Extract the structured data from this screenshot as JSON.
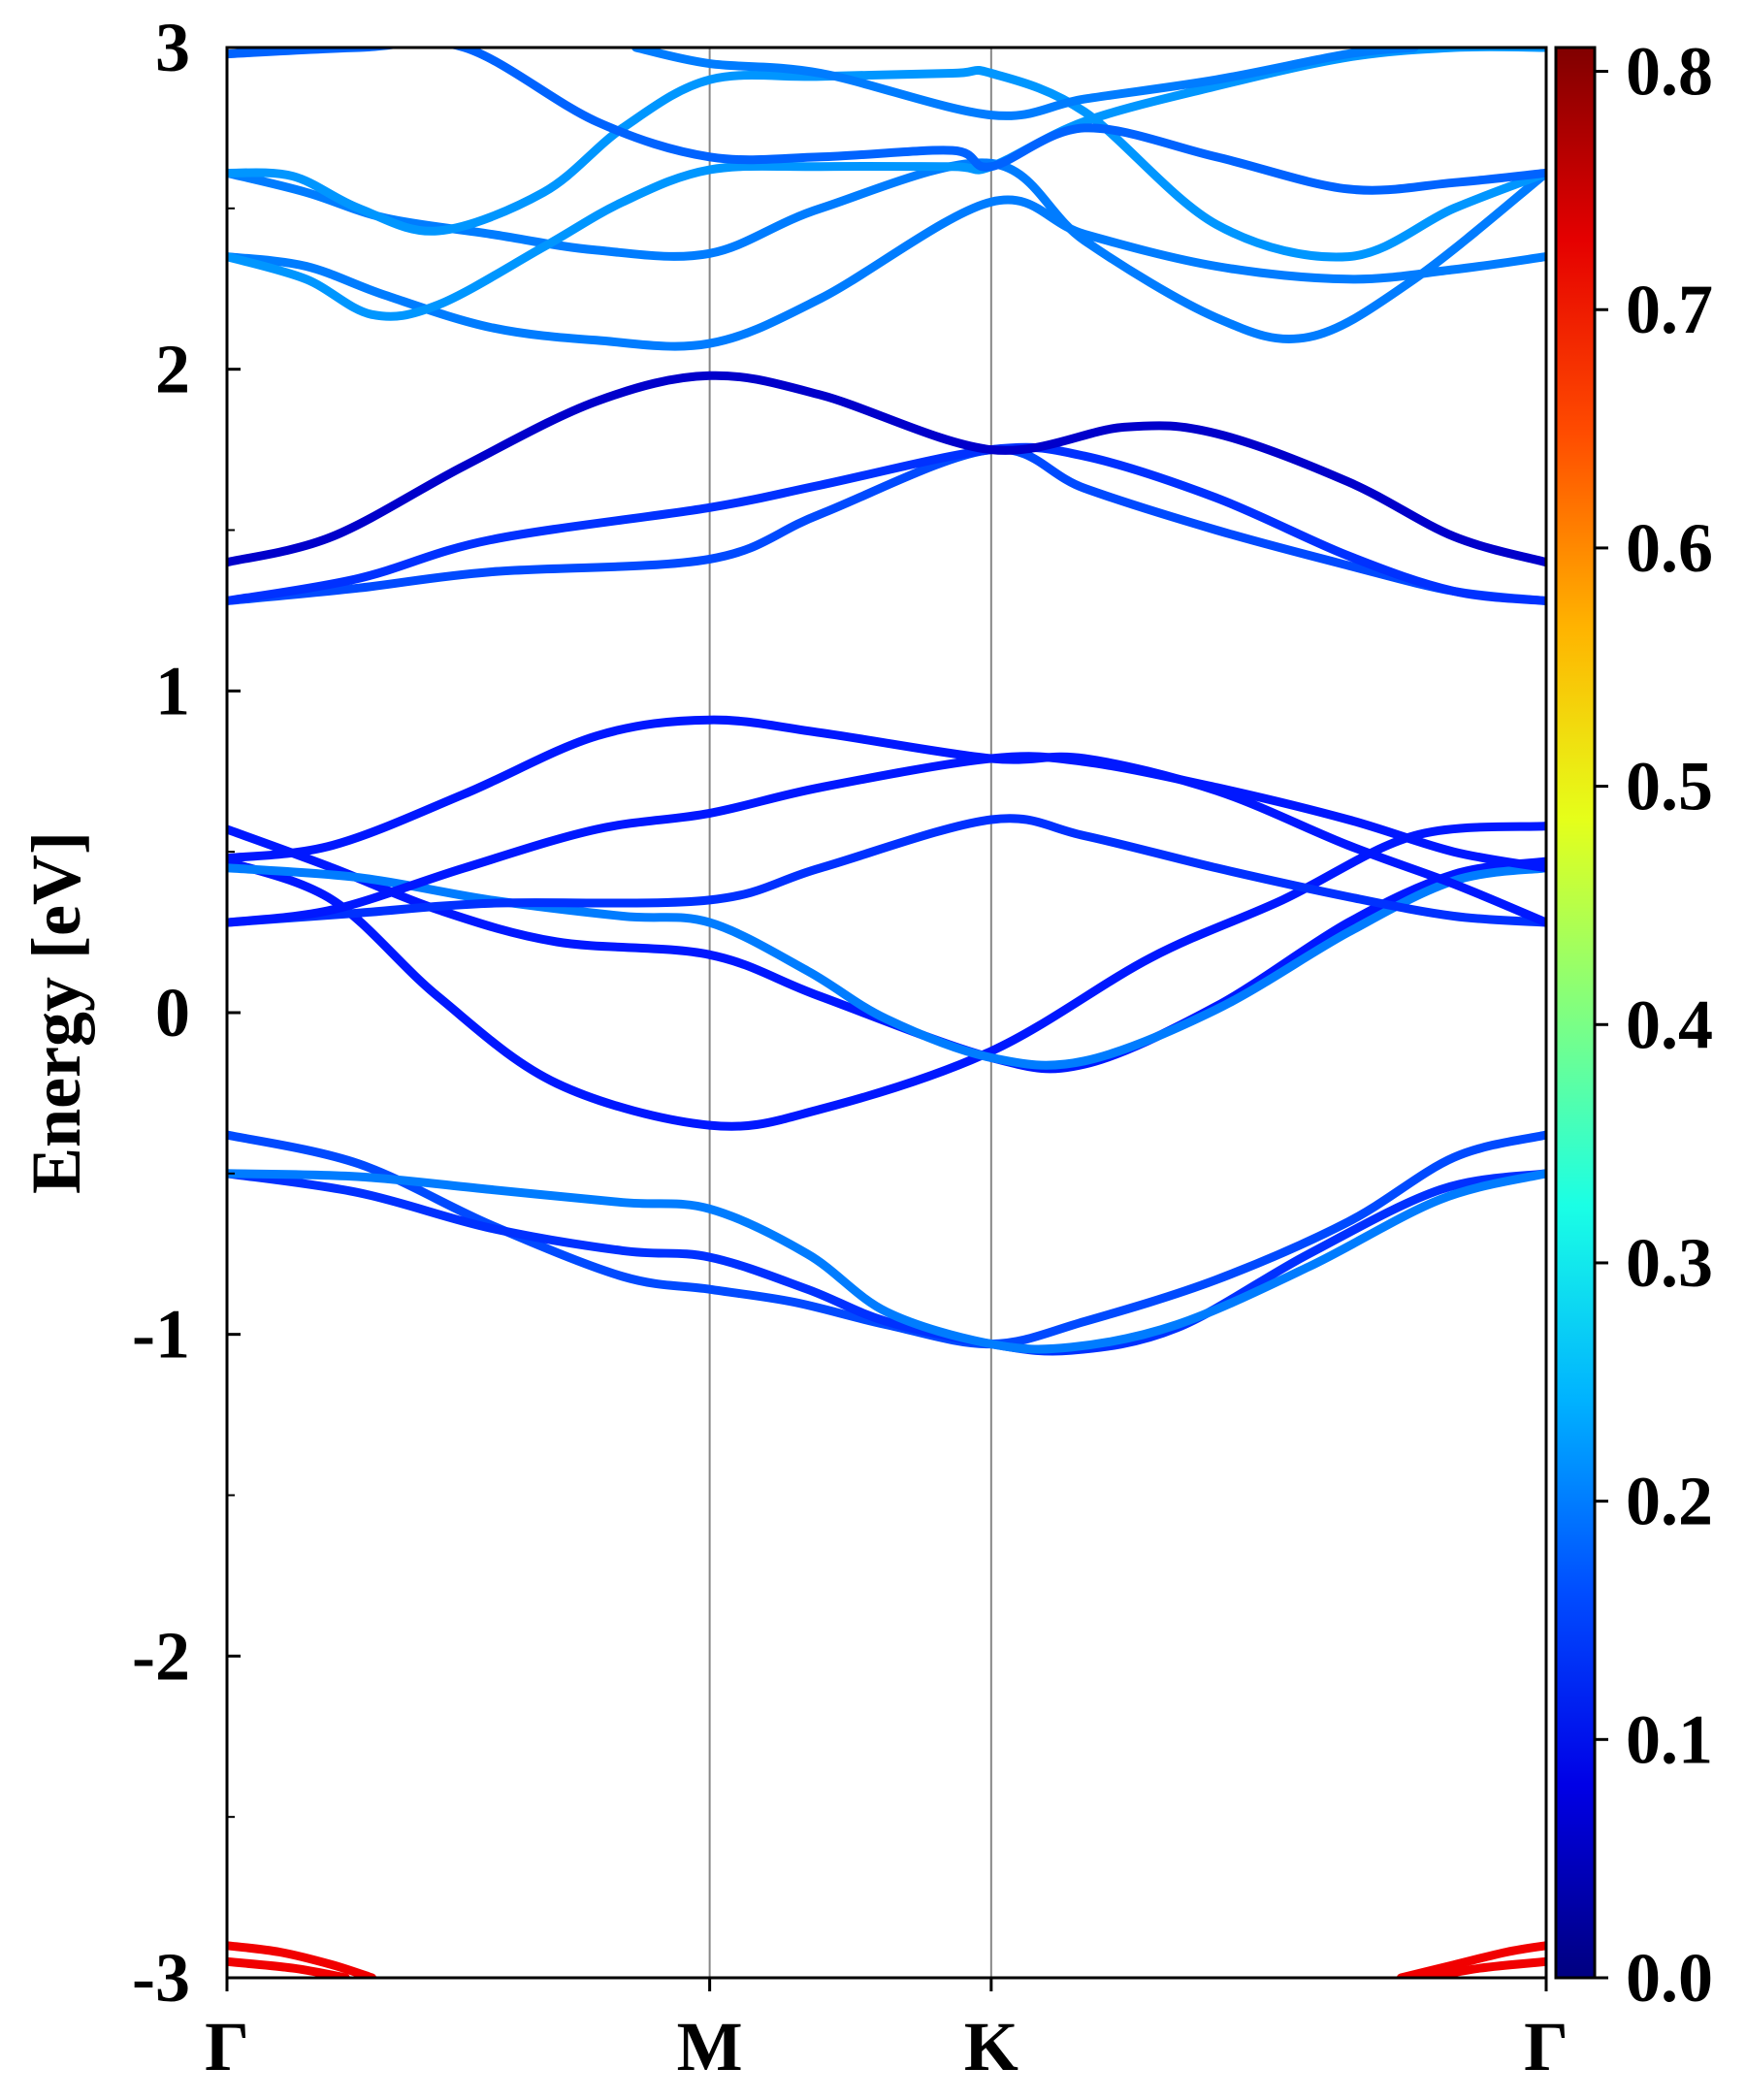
{
  "chart_data": {
    "type": "line",
    "title": "",
    "xlabel": "",
    "ylabel": "Energy [eV]",
    "ylim": [
      -3,
      3
    ],
    "grid": false,
    "x_ticks": [
      {
        "label": "Γ",
        "k": 0.0
      },
      {
        "label": "M",
        "k": 0.3659
      },
      {
        "label": "K",
        "k": 0.5793
      },
      {
        "label": "Γ",
        "k": 1.0
      }
    ],
    "y_ticks": [
      "3",
      "2",
      "1",
      "0",
      "-1",
      "-2",
      "-3"
    ],
    "colorbar": {
      "min": 0.0,
      "max": 0.81,
      "tick_labels": [
        "0.8",
        "0.7",
        "0.6",
        "0.5",
        "0.4",
        "0.3",
        "0.2",
        "0.1",
        "0.0"
      ],
      "colormap": "jet"
    },
    "series": [
      {
        "weight": 0.16,
        "points": [
          [
            0,
            -0.38
          ],
          [
            0.1,
            -0.47
          ],
          [
            0.2,
            -0.66
          ],
          [
            0.3,
            -0.82
          ],
          [
            0.3659,
            -0.86
          ],
          [
            0.43,
            -0.9
          ],
          [
            0.5,
            -0.97
          ],
          [
            0.5793,
            -1.03
          ],
          [
            0.65,
            -0.96
          ],
          [
            0.75,
            -0.83
          ],
          [
            0.85,
            -0.65
          ],
          [
            0.93,
            -0.45
          ],
          [
            1.0,
            -0.38
          ]
        ]
      },
      {
        "weight": 0.14,
        "points": [
          [
            0,
            -0.5
          ],
          [
            0.1,
            -0.56
          ],
          [
            0.2,
            -0.67
          ],
          [
            0.3,
            -0.74
          ],
          [
            0.3659,
            -0.76
          ],
          [
            0.44,
            -0.86
          ],
          [
            0.5,
            -0.96
          ],
          [
            0.5793,
            -1.03
          ],
          [
            0.64,
            -1.05
          ],
          [
            0.72,
            -0.98
          ],
          [
            0.82,
            -0.75
          ],
          [
            0.92,
            -0.55
          ],
          [
            1.0,
            -0.5
          ]
        ]
      },
      {
        "weight": 0.2,
        "points": [
          [
            0,
            -0.5
          ],
          [
            0.1,
            -0.51
          ],
          [
            0.2,
            -0.55
          ],
          [
            0.3,
            -0.59
          ],
          [
            0.3659,
            -0.61
          ],
          [
            0.44,
            -0.75
          ],
          [
            0.5,
            -0.93
          ],
          [
            0.5793,
            -1.03
          ],
          [
            0.64,
            -1.04
          ],
          [
            0.72,
            -0.97
          ],
          [
            0.82,
            -0.79
          ],
          [
            0.92,
            -0.58
          ],
          [
            1.0,
            -0.5
          ]
        ]
      },
      {
        "weight": 0.12,
        "points": [
          [
            0,
            0.47
          ],
          [
            0.08,
            0.35
          ],
          [
            0.16,
            0.05
          ],
          [
            0.25,
            -0.22
          ],
          [
            0.3659,
            -0.35
          ],
          [
            0.45,
            -0.3
          ],
          [
            0.5793,
            -0.12
          ],
          [
            0.7,
            0.17
          ],
          [
            0.8,
            0.35
          ],
          [
            0.9,
            0.55
          ],
          [
            1.0,
            0.58
          ]
        ]
      },
      {
        "weight": 0.12,
        "points": [
          [
            0,
            0.57
          ],
          [
            0.08,
            0.45
          ],
          [
            0.16,
            0.32
          ],
          [
            0.25,
            0.22
          ],
          [
            0.3659,
            0.18
          ],
          [
            0.45,
            0.05
          ],
          [
            0.5793,
            -0.14
          ],
          [
            0.65,
            -0.16
          ],
          [
            0.75,
            0.02
          ],
          [
            0.85,
            0.28
          ],
          [
            0.93,
            0.43
          ],
          [
            1.0,
            0.47
          ]
        ]
      },
      {
        "weight": 0.2,
        "points": [
          [
            0,
            0.45
          ],
          [
            0.1,
            0.42
          ],
          [
            0.2,
            0.35
          ],
          [
            0.3,
            0.3
          ],
          [
            0.3659,
            0.28
          ],
          [
            0.44,
            0.13
          ],
          [
            0.5,
            -0.02
          ],
          [
            0.5793,
            -0.14
          ],
          [
            0.65,
            -0.15
          ],
          [
            0.75,
            0.01
          ],
          [
            0.85,
            0.25
          ],
          [
            0.93,
            0.41
          ],
          [
            1.0,
            0.45
          ]
        ]
      },
      {
        "weight": 0.14,
        "points": [
          [
            0,
            0.28
          ],
          [
            0.1,
            0.31
          ],
          [
            0.2,
            0.34
          ],
          [
            0.3659,
            0.35
          ],
          [
            0.45,
            0.45
          ],
          [
            0.5793,
            0.6
          ],
          [
            0.65,
            0.55
          ],
          [
            0.75,
            0.45
          ],
          [
            0.85,
            0.36
          ],
          [
            0.93,
            0.3
          ],
          [
            1.0,
            0.28
          ]
        ]
      },
      {
        "weight": 0.12,
        "points": [
          [
            0,
            0.28
          ],
          [
            0.08,
            0.32
          ],
          [
            0.18,
            0.45
          ],
          [
            0.28,
            0.57
          ],
          [
            0.3659,
            0.62
          ],
          [
            0.45,
            0.7
          ],
          [
            0.5793,
            0.79
          ],
          [
            0.65,
            0.78
          ],
          [
            0.75,
            0.7
          ],
          [
            0.85,
            0.6
          ],
          [
            0.93,
            0.5
          ],
          [
            1.0,
            0.45
          ]
        ]
      },
      {
        "weight": 0.12,
        "points": [
          [
            0,
            0.48
          ],
          [
            0.08,
            0.52
          ],
          [
            0.18,
            0.68
          ],
          [
            0.28,
            0.86
          ],
          [
            0.3659,
            0.91
          ],
          [
            0.45,
            0.87
          ],
          [
            0.5793,
            0.79
          ],
          [
            0.65,
            0.79
          ],
          [
            0.75,
            0.69
          ],
          [
            0.85,
            0.52
          ],
          [
            0.93,
            0.4
          ],
          [
            1.0,
            0.28
          ]
        ]
      },
      {
        "weight": 0.16,
        "points": [
          [
            0,
            1.28
          ],
          [
            0.1,
            1.32
          ],
          [
            0.2,
            1.37
          ],
          [
            0.3659,
            1.41
          ],
          [
            0.45,
            1.55
          ],
          [
            0.5793,
            1.75
          ],
          [
            0.65,
            1.63
          ],
          [
            0.75,
            1.5
          ],
          [
            0.85,
            1.39
          ],
          [
            0.93,
            1.31
          ],
          [
            1.0,
            1.28
          ]
        ]
      },
      {
        "weight": 0.14,
        "points": [
          [
            0,
            1.28
          ],
          [
            0.1,
            1.35
          ],
          [
            0.2,
            1.47
          ],
          [
            0.3659,
            1.57
          ],
          [
            0.45,
            1.64
          ],
          [
            0.5793,
            1.75
          ],
          [
            0.65,
            1.73
          ],
          [
            0.75,
            1.6
          ],
          [
            0.85,
            1.42
          ],
          [
            0.93,
            1.31
          ],
          [
            1.0,
            1.28
          ]
        ]
      },
      {
        "weight": 0.06,
        "points": [
          [
            0,
            1.4
          ],
          [
            0.08,
            1.48
          ],
          [
            0.18,
            1.7
          ],
          [
            0.28,
            1.9
          ],
          [
            0.3659,
            1.98
          ],
          [
            0.45,
            1.92
          ],
          [
            0.5793,
            1.75
          ],
          [
            0.68,
            1.82
          ],
          [
            0.75,
            1.8
          ],
          [
            0.85,
            1.65
          ],
          [
            0.93,
            1.48
          ],
          [
            1.0,
            1.4
          ]
        ]
      },
      {
        "weight": 0.2,
        "points": [
          [
            0,
            2.35
          ],
          [
            0.06,
            2.32
          ],
          [
            0.12,
            2.23
          ],
          [
            0.2,
            2.13
          ],
          [
            0.28,
            2.09
          ],
          [
            0.3659,
            2.08
          ],
          [
            0.45,
            2.22
          ],
          [
            0.5793,
            2.52
          ],
          [
            0.65,
            2.42
          ],
          [
            0.75,
            2.32
          ],
          [
            0.85,
            2.28
          ],
          [
            0.93,
            2.31
          ],
          [
            1.0,
            2.35
          ]
        ]
      },
      {
        "weight": 0.2,
        "points": [
          [
            0,
            2.61
          ],
          [
            0.06,
            2.55
          ],
          [
            0.12,
            2.47
          ],
          [
            0.2,
            2.42
          ],
          [
            0.28,
            2.37
          ],
          [
            0.3659,
            2.36
          ],
          [
            0.45,
            2.5
          ],
          [
            0.5793,
            2.64
          ],
          [
            0.65,
            2.4
          ],
          [
            0.75,
            2.16
          ],
          [
            0.82,
            2.1
          ],
          [
            0.9,
            2.28
          ],
          [
            1.0,
            2.61
          ]
        ]
      },
      {
        "weight": 0.22,
        "points": [
          [
            0,
            2.35
          ],
          [
            0.06,
            2.28
          ],
          [
            0.11,
            2.17
          ],
          [
            0.16,
            2.2
          ],
          [
            0.24,
            2.38
          ],
          [
            0.3,
            2.52
          ],
          [
            0.3659,
            2.62
          ],
          [
            0.45,
            2.63
          ],
          [
            0.55,
            2.63
          ],
          [
            0.5793,
            2.63
          ],
          [
            0.65,
            2.77
          ],
          [
            0.75,
            2.88
          ],
          [
            0.85,
            2.97
          ],
          [
            0.93,
            3.0
          ],
          [
            1.0,
            3.0
          ]
        ]
      },
      {
        "weight": 0.22,
        "points": [
          [
            0,
            2.61
          ],
          [
            0.05,
            2.6
          ],
          [
            0.1,
            2.5
          ],
          [
            0.16,
            2.43
          ],
          [
            0.24,
            2.55
          ],
          [
            0.3,
            2.75
          ],
          [
            0.3659,
            2.9
          ],
          [
            0.45,
            2.91
          ],
          [
            0.55,
            2.92
          ],
          [
            0.5793,
            2.92
          ],
          [
            0.65,
            2.8
          ],
          [
            0.75,
            2.45
          ],
          [
            0.85,
            2.35
          ],
          [
            0.93,
            2.5
          ],
          [
            1.0,
            2.61
          ]
        ]
      },
      {
        "weight": 0.18,
        "points": [
          [
            0,
            2.98
          ],
          [
            0.1,
            3.0
          ],
          [
            0.18,
            3.0
          ],
          [
            0.28,
            2.77
          ],
          [
            0.3659,
            2.66
          ],
          [
            0.45,
            2.66
          ],
          [
            0.55,
            2.68
          ],
          [
            0.5793,
            2.63
          ],
          [
            0.65,
            2.75
          ],
          [
            0.75,
            2.66
          ],
          [
            0.85,
            2.56
          ],
          [
            0.93,
            2.58
          ],
          [
            1.0,
            2.61
          ]
        ]
      },
      {
        "weight": 0.2,
        "points": [
          [
            0.31,
            3.0
          ],
          [
            0.3659,
            2.95
          ],
          [
            0.45,
            2.92
          ],
          [
            0.5793,
            2.79
          ],
          [
            0.65,
            2.84
          ],
          [
            0.75,
            2.9
          ],
          [
            0.85,
            2.98
          ],
          [
            0.9,
            3.0
          ]
        ]
      },
      {
        "weight": 0.72,
        "points": [
          [
            0,
            -2.9
          ],
          [
            0.04,
            -2.92
          ],
          [
            0.08,
            -2.96
          ],
          [
            0.11,
            -3.0
          ]
        ]
      },
      {
        "weight": 0.72,
        "points": [
          [
            0,
            -2.95
          ],
          [
            0.05,
            -2.97
          ],
          [
            0.09,
            -3.0
          ]
        ]
      },
      {
        "weight": 0.72,
        "points": [
          [
            0.89,
            -3.0
          ],
          [
            0.93,
            -2.96
          ],
          [
            0.97,
            -2.92
          ],
          [
            1.0,
            -2.9
          ]
        ]
      },
      {
        "weight": 0.72,
        "points": [
          [
            0.91,
            -3.0
          ],
          [
            0.95,
            -2.97
          ],
          [
            1.0,
            -2.95
          ]
        ]
      }
    ]
  }
}
